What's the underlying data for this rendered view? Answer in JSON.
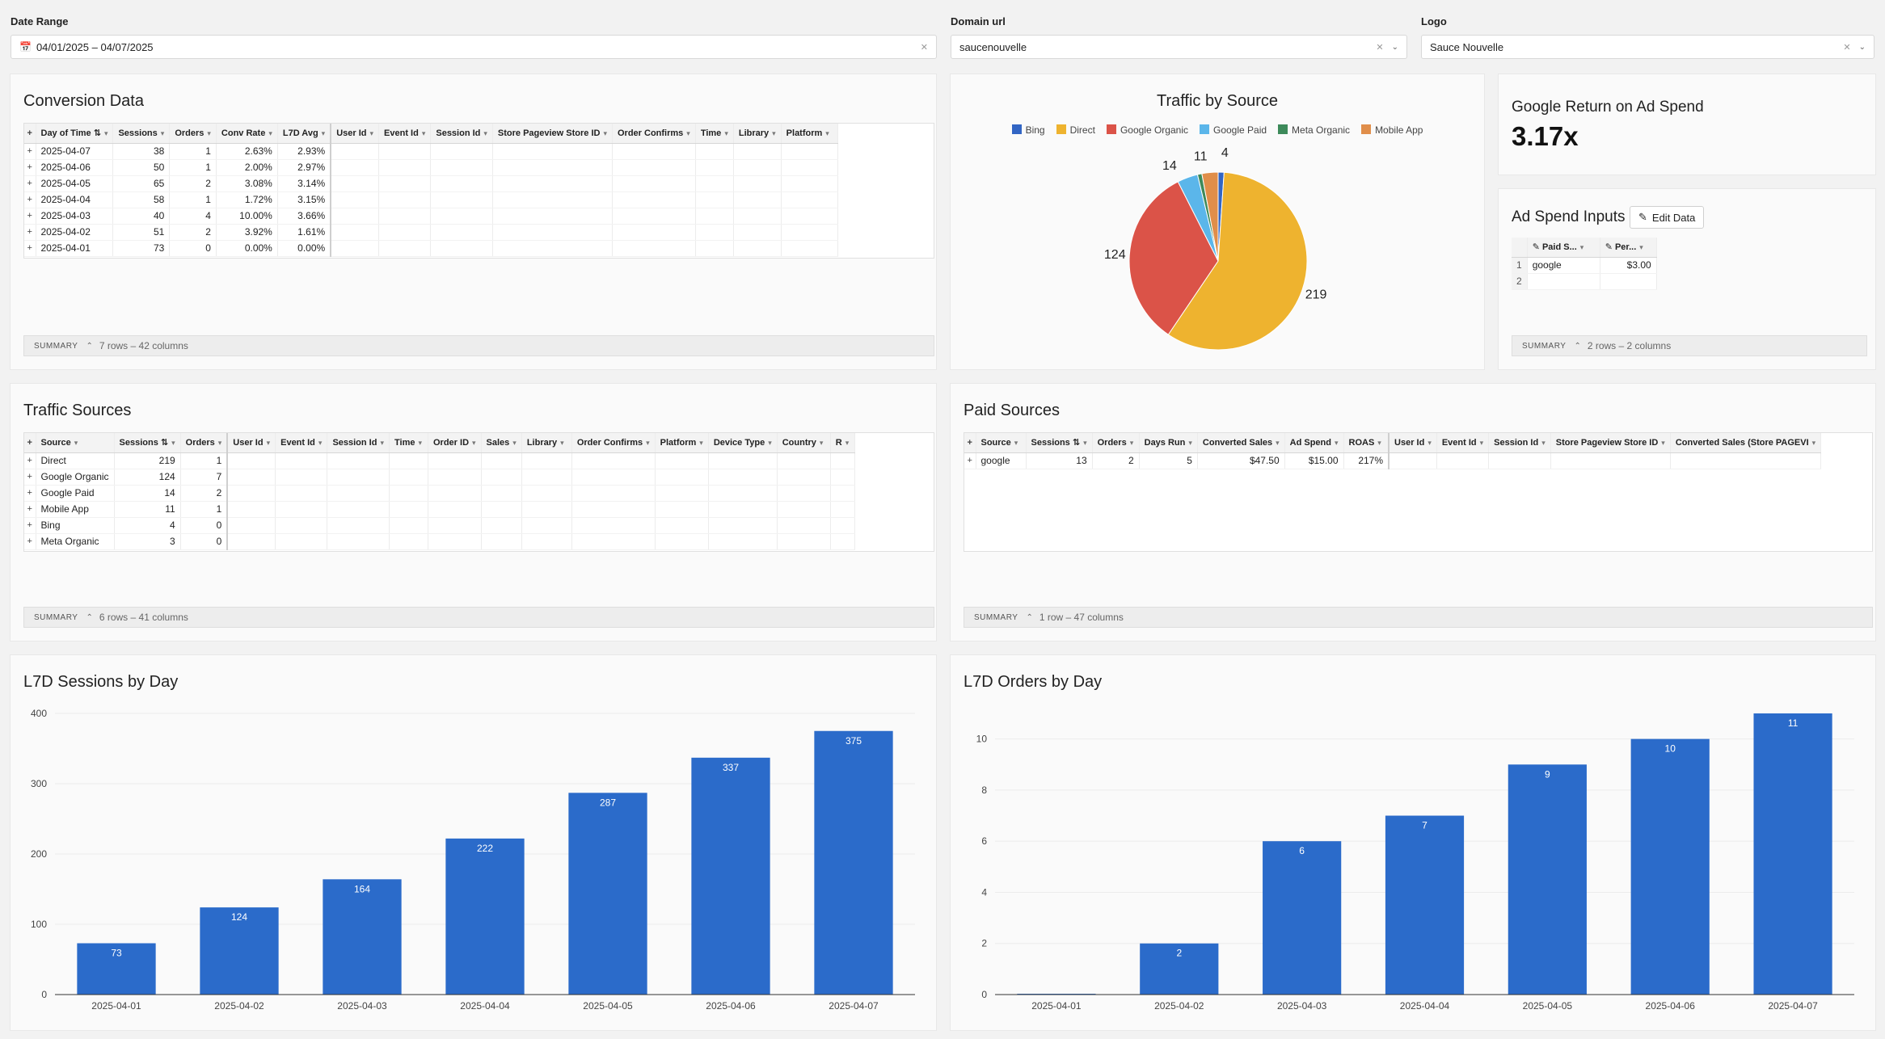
{
  "controls": {
    "date_range": {
      "label": "Date Range",
      "value": "04/01/2025 – 04/07/2025"
    },
    "domain": {
      "label": "Domain url",
      "value": "saucenouvelle"
    },
    "logo": {
      "label": "Logo",
      "value": "Sauce Nouvelle"
    }
  },
  "conversion": {
    "title": "Conversion Data",
    "columns": [
      "Day of Time",
      "Sessions",
      "Orders",
      "Conv Rate",
      "L7D Avg",
      "User Id",
      "Event Id",
      "Session Id",
      "Store Pageview Store ID",
      "Order Confirms",
      "Time",
      "Library",
      "Platform"
    ],
    "rows": [
      [
        "2025-04-07",
        "38",
        "1",
        "2.63%",
        "2.93%"
      ],
      [
        "2025-04-06",
        "50",
        "1",
        "2.00%",
        "2.97%"
      ],
      [
        "2025-04-05",
        "65",
        "2",
        "3.08%",
        "3.14%"
      ],
      [
        "2025-04-04",
        "58",
        "1",
        "1.72%",
        "3.15%"
      ],
      [
        "2025-04-03",
        "40",
        "4",
        "10.00%",
        "3.66%"
      ],
      [
        "2025-04-02",
        "51",
        "2",
        "3.92%",
        "1.61%"
      ],
      [
        "2025-04-01",
        "73",
        "0",
        "0.00%",
        "0.00%"
      ]
    ],
    "summary_label": "SUMMARY",
    "summary_count": "7 rows – 42 columns"
  },
  "traffic_by_source": {
    "title": "Traffic by Source",
    "colors": {
      "Bing": "#3265c4",
      "Direct": "#eeb32f",
      "Google Organic": "#db5348",
      "Google Paid": "#5bb6ea",
      "Meta Organic": "#3d8a5a",
      "Mobile App": "#e08e4a"
    }
  },
  "roas": {
    "title": "Google Return on Ad Spend",
    "value": "3.17x"
  },
  "ad_spend": {
    "title": "Ad Spend Inputs",
    "edit_label": "Edit Data",
    "columns": [
      "Paid S...",
      "Per..."
    ],
    "rows": [
      [
        "1",
        "google",
        "$3.00"
      ],
      [
        "2",
        "",
        ""
      ]
    ],
    "summary_label": "SUMMARY",
    "summary_count": "2 rows – 2 columns"
  },
  "traffic_sources": {
    "title": "Traffic Sources",
    "columns": [
      "Source",
      "Sessions",
      "Orders",
      "User Id",
      "Event Id",
      "Session Id",
      "Time",
      "Order ID",
      "Sales",
      "Library",
      "Order Confirms",
      "Platform",
      "Device Type",
      "Country",
      "R"
    ],
    "rows": [
      [
        "Direct",
        "219",
        "1"
      ],
      [
        "Google Organic",
        "124",
        "7"
      ],
      [
        "Google Paid",
        "14",
        "2"
      ],
      [
        "Mobile App",
        "11",
        "1"
      ],
      [
        "Bing",
        "4",
        "0"
      ],
      [
        "Meta Organic",
        "3",
        "0"
      ]
    ],
    "summary_label": "SUMMARY",
    "summary_count": "6 rows – 41 columns"
  },
  "paid_sources": {
    "title": "Paid Sources",
    "columns": [
      "Source",
      "Sessions",
      "Orders",
      "Days Run",
      "Converted Sales",
      "Ad Spend",
      "ROAS",
      "User Id",
      "Event Id",
      "Session Id",
      "Store Pageview Store ID",
      "Converted Sales (Store PAGEVI"
    ],
    "rows": [
      [
        "google",
        "13",
        "2",
        "5",
        "$47.50",
        "$15.00",
        "217%"
      ]
    ],
    "summary_label": "SUMMARY",
    "summary_count": "1 row – 47 columns"
  },
  "sessions_chart": {
    "title": "L7D Sessions by Day"
  },
  "orders_chart": {
    "title": "L7D Orders by Day"
  },
  "chart_data": [
    {
      "type": "pie",
      "title": "Traffic by Source",
      "categories": [
        "Bing",
        "Direct",
        "Google Organic",
        "Google Paid",
        "Meta Organic",
        "Mobile App"
      ],
      "values": [
        4,
        219,
        124,
        14,
        3,
        11
      ],
      "legend": "top"
    },
    {
      "type": "bar",
      "title": "L7D Sessions by Day",
      "categories": [
        "2025-04-01",
        "2025-04-02",
        "2025-04-03",
        "2025-04-04",
        "2025-04-05",
        "2025-04-06",
        "2025-04-07"
      ],
      "values": [
        73,
        124,
        164,
        222,
        287,
        337,
        375
      ],
      "ylim": [
        0,
        400
      ],
      "yticks": [
        0,
        100,
        200,
        300,
        400
      ],
      "color": "#2b6bca"
    },
    {
      "type": "bar",
      "title": "L7D Orders by Day",
      "categories": [
        "2025-04-01",
        "2025-04-02",
        "2025-04-03",
        "2025-04-04",
        "2025-04-05",
        "2025-04-06",
        "2025-04-07"
      ],
      "values": [
        0,
        2,
        6,
        7,
        9,
        10,
        11
      ],
      "ylim": [
        0,
        11
      ],
      "yticks": [
        0,
        2,
        4,
        6,
        8,
        10
      ],
      "color": "#2b6bca"
    }
  ]
}
